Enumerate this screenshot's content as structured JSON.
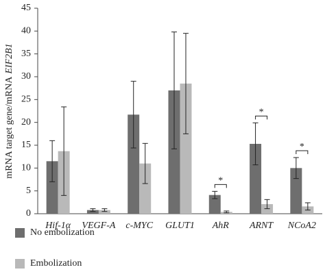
{
  "chart_data": {
    "type": "bar",
    "ylabel": [
      "mRNA target gene/mRNA",
      "EIF2B1"
    ],
    "categories": [
      "Hif-1α",
      "VEGF-A",
      "c-MYC",
      "GLUT1",
      "AhR",
      "ARNT",
      "NCoA2"
    ],
    "series": [
      {
        "name": "No embolization",
        "color": "#6e6e6e",
        "values": [
          11.5,
          0.8,
          21.7,
          27,
          4.1,
          15.3,
          10
        ],
        "errors": [
          4.5,
          0.3,
          7.3,
          12.8,
          0.8,
          4.6,
          2.3
        ]
      },
      {
        "name": "Embolization",
        "color": "#b9b9b9",
        "values": [
          13.7,
          0.8,
          11,
          28.5,
          0.4,
          2.1,
          1.6
        ],
        "errors": [
          9.7,
          0.3,
          4.4,
          11,
          0.2,
          1,
          0.8
        ]
      }
    ],
    "annotations": [
      {
        "text": "*",
        "category": "AhR"
      },
      {
        "text": "*",
        "category": "ARNT"
      },
      {
        "text": "*",
        "category": "NCoA2"
      }
    ],
    "ylim": [
      0,
      45
    ],
    "yticks": [
      0,
      5,
      10,
      15,
      20,
      25,
      30,
      35,
      40,
      45
    ]
  }
}
